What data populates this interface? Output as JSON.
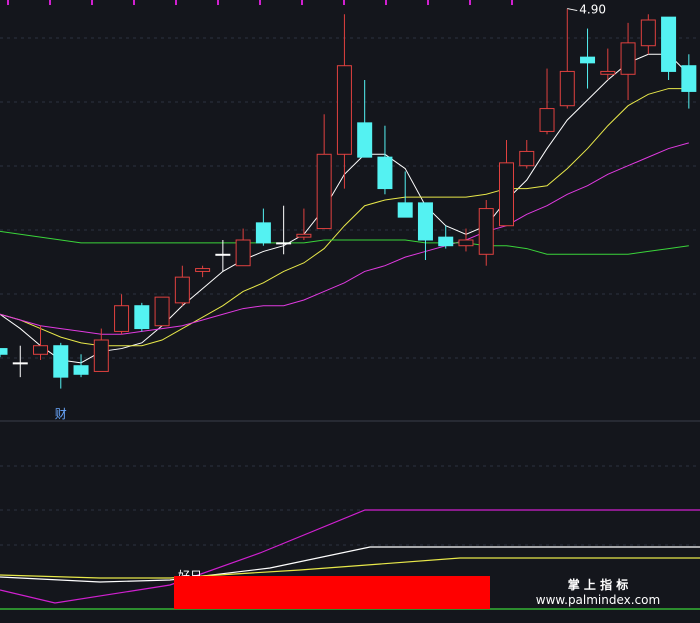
{
  "chart_data": {
    "type": "candlestick",
    "categories": [
      null,
      null,
      null,
      null,
      null,
      null,
      null,
      null,
      null,
      null,
      null,
      null,
      null,
      null,
      null,
      null,
      null,
      null,
      null,
      null,
      null,
      null,
      null,
      null,
      null,
      null,
      null,
      null,
      null,
      null,
      null,
      null,
      null,
      null,
      null
    ],
    "ylim": [
      3.46,
      4.93
    ],
    "up_color": "#e0413f",
    "down_color": "#54f2f2",
    "flat_color": "#ffffff",
    "open": [
      3.71,
      3.66,
      3.69,
      3.72,
      3.65,
      3.63,
      3.77,
      3.86,
      3.79,
      3.87,
      3.98,
      4.04,
      4.0,
      4.15,
      4.08,
      4.1,
      4.13,
      4.39,
      4.5,
      4.38,
      4.22,
      4.22,
      4.1,
      4.07,
      4.04,
      4.14,
      4.35,
      4.47,
      4.56,
      4.73,
      4.67,
      4.67,
      4.77,
      4.87,
      4.7
    ],
    "high": [
      3.71,
      3.72,
      3.79,
      3.73,
      3.69,
      3.78,
      3.9,
      3.87,
      3.89,
      4.0,
      4.0,
      4.09,
      4.13,
      4.2,
      4.21,
      4.2,
      4.53,
      4.88,
      4.65,
      4.49,
      4.33,
      4.22,
      4.14,
      4.13,
      4.23,
      4.44,
      4.44,
      4.69,
      4.9,
      4.83,
      4.76,
      4.85,
      4.88,
      4.87,
      4.74
    ],
    "low": [
      3.68,
      3.61,
      3.67,
      3.57,
      3.61,
      3.63,
      3.76,
      3.77,
      3.79,
      3.86,
      3.96,
      3.98,
      4.0,
      4.07,
      4.04,
      4.09,
      4.13,
      4.27,
      4.38,
      4.25,
      4.17,
      4.02,
      4.06,
      4.05,
      4.0,
      4.14,
      4.34,
      4.46,
      4.55,
      4.62,
      4.65,
      4.58,
      4.74,
      4.65,
      4.55
    ],
    "close": [
      3.69,
      3.66,
      3.72,
      3.61,
      3.62,
      3.74,
      3.86,
      3.78,
      3.89,
      3.96,
      3.99,
      4.04,
      4.09,
      4.08,
      4.08,
      4.11,
      4.39,
      4.7,
      4.38,
      4.27,
      4.17,
      4.09,
      4.07,
      4.09,
      4.2,
      4.36,
      4.4,
      4.55,
      4.68,
      4.71,
      4.68,
      4.78,
      4.86,
      4.68,
      4.61
    ],
    "lines": [
      {
        "color": "#ffffff",
        "values": [
          3.83,
          3.78,
          3.72,
          3.67,
          3.66,
          3.7,
          3.71,
          3.73,
          3.79,
          3.86,
          3.92,
          3.98,
          4.02,
          4.05,
          4.07,
          4.11,
          4.2,
          4.32,
          4.39,
          4.39,
          4.34,
          4.21,
          4.14,
          4.11,
          4.14,
          4.23,
          4.3,
          4.41,
          4.51,
          4.58,
          4.65,
          4.71,
          4.74,
          4.74,
          4.67
        ]
      },
      {
        "color": "#e8e84a",
        "values": [
          3.83,
          3.81,
          3.78,
          3.75,
          3.73,
          3.72,
          3.72,
          3.72,
          3.74,
          3.78,
          3.82,
          3.86,
          3.91,
          3.94,
          3.98,
          4.01,
          4.06,
          4.14,
          4.21,
          4.23,
          4.24,
          4.24,
          4.24,
          4.24,
          4.25,
          4.27,
          4.27,
          4.28,
          4.34,
          4.41,
          4.49,
          4.56,
          4.6,
          4.62,
          4.62
        ]
      },
      {
        "color": "#e03ae0",
        "values": [
          3.83,
          3.81,
          3.79,
          3.78,
          3.77,
          3.76,
          3.76,
          3.77,
          3.78,
          3.79,
          3.81,
          3.83,
          3.85,
          3.86,
          3.86,
          3.88,
          3.91,
          3.94,
          3.98,
          4.0,
          4.03,
          4.05,
          4.07,
          4.09,
          4.12,
          4.14,
          4.18,
          4.21,
          4.25,
          4.28,
          4.32,
          4.35,
          4.38,
          4.41,
          4.43
        ]
      },
      {
        "color": "#3ad43a",
        "values": [
          4.12,
          4.11,
          4.1,
          4.09,
          4.08,
          4.08,
          4.08,
          4.08,
          4.08,
          4.08,
          4.08,
          4.08,
          4.08,
          4.08,
          4.08,
          4.08,
          4.09,
          4.09,
          4.09,
          4.09,
          4.09,
          4.08,
          4.08,
          4.08,
          4.07,
          4.07,
          4.06,
          4.04,
          4.04,
          4.04,
          4.04,
          4.04,
          4.05,
          4.06,
          4.07
        ]
      }
    ],
    "annotations": [
      {
        "text": "4.90",
        "index": 28,
        "value": 4.9
      },
      {
        "text": "财",
        "index": 3
      }
    ],
    "lower_label": "好日",
    "watermark": [
      "掌 上 指 标",
      "www.palmindex.com"
    ]
  }
}
